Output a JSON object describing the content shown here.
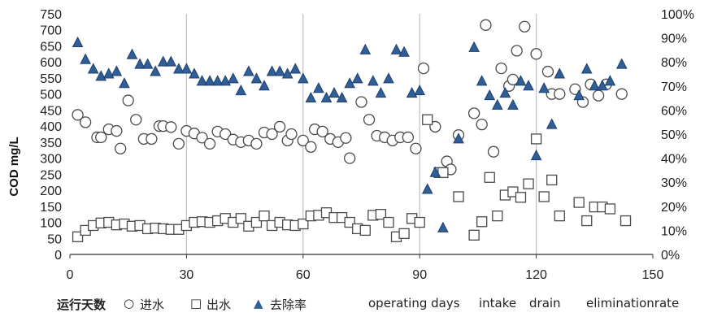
{
  "chart_data": {
    "type": "scatter",
    "title": "",
    "xlabel": "",
    "ylabel": "COD mg/L",
    "xlim": [
      0,
      150
    ],
    "xticks": [
      "0",
      "30",
      "60",
      "90",
      "120",
      "150"
    ],
    "ylim": [
      0,
      750
    ],
    "yticks": [
      "0",
      "50",
      "100",
      "150",
      "200",
      "250",
      "300",
      "350",
      "400",
      "450",
      "500",
      "550",
      "600",
      "650",
      "700",
      "750"
    ],
    "y2lim": [
      0,
      100
    ],
    "y2ticks": [
      "0%",
      "10%",
      "20%",
      "30%",
      "40%",
      "50%",
      "60%",
      "70%",
      "80%",
      "90%",
      "100%"
    ],
    "grid": "vertical gridlines at x = 30, 60, 90, 120",
    "series": [
      {
        "name": "进水",
        "axis": "left",
        "marker": "circle",
        "points": [
          [
            2,
            435
          ],
          [
            4,
            412
          ],
          [
            7,
            365
          ],
          [
            8,
            365
          ],
          [
            10,
            390
          ],
          [
            12,
            385
          ],
          [
            13,
            330
          ],
          [
            15,
            480
          ],
          [
            17,
            420
          ],
          [
            19,
            360
          ],
          [
            21,
            360
          ],
          [
            23,
            400
          ],
          [
            24,
            400
          ],
          [
            26,
            397
          ],
          [
            28,
            345
          ],
          [
            30,
            385
          ],
          [
            32,
            377
          ],
          [
            34,
            364
          ],
          [
            36,
            345
          ],
          [
            38,
            383
          ],
          [
            40,
            375
          ],
          [
            42,
            358
          ],
          [
            44,
            350
          ],
          [
            46,
            355
          ],
          [
            48,
            345
          ],
          [
            50,
            380
          ],
          [
            52,
            375
          ],
          [
            54,
            398
          ],
          [
            56,
            355
          ],
          [
            57,
            375
          ],
          [
            60,
            355
          ],
          [
            62,
            335
          ],
          [
            63,
            390
          ],
          [
            65,
            383
          ],
          [
            67,
            360
          ],
          [
            69,
            350
          ],
          [
            71,
            363
          ],
          [
            72,
            300
          ],
          [
            75,
            475
          ],
          [
            77,
            420
          ],
          [
            79,
            370
          ],
          [
            81,
            365
          ],
          [
            83,
            355
          ],
          [
            85,
            365
          ],
          [
            87,
            365
          ],
          [
            89,
            330
          ],
          [
            91,
            580
          ],
          [
            94,
            398
          ],
          [
            97,
            290
          ],
          [
            98,
            265
          ],
          [
            100,
            372
          ],
          [
            104,
            440
          ],
          [
            106,
            405
          ],
          [
            107,
            715
          ],
          [
            109,
            320
          ],
          [
            111,
            580
          ],
          [
            113,
            525
          ],
          [
            114,
            545
          ],
          [
            115,
            635
          ],
          [
            117,
            710
          ],
          [
            120,
            625
          ],
          [
            123,
            570
          ],
          [
            124,
            500
          ],
          [
            126,
            500
          ],
          [
            130,
            515
          ],
          [
            132,
            475
          ],
          [
            134,
            530
          ],
          [
            136,
            495
          ],
          [
            138,
            530
          ],
          [
            142,
            500
          ]
        ]
      },
      {
        "name": "出水",
        "axis": "left",
        "marker": "square",
        "points": [
          [
            2,
            55
          ],
          [
            4,
            75
          ],
          [
            6,
            90
          ],
          [
            8,
            98
          ],
          [
            10,
            100
          ],
          [
            12,
            92
          ],
          [
            14,
            95
          ],
          [
            16,
            88
          ],
          [
            18,
            90
          ],
          [
            20,
            80
          ],
          [
            22,
            82
          ],
          [
            24,
            80
          ],
          [
            26,
            78
          ],
          [
            28,
            78
          ],
          [
            30,
            90
          ],
          [
            32,
            100
          ],
          [
            34,
            102
          ],
          [
            36,
            100
          ],
          [
            38,
            105
          ],
          [
            40,
            112
          ],
          [
            42,
            100
          ],
          [
            44,
            112
          ],
          [
            46,
            88
          ],
          [
            48,
            100
          ],
          [
            50,
            120
          ],
          [
            52,
            90
          ],
          [
            54,
            100
          ],
          [
            56,
            92
          ],
          [
            58,
            90
          ],
          [
            60,
            95
          ],
          [
            62,
            120
          ],
          [
            64,
            122
          ],
          [
            66,
            130
          ],
          [
            68,
            115
          ],
          [
            70,
            115
          ],
          [
            72,
            100
          ],
          [
            74,
            80
          ],
          [
            76,
            75
          ],
          [
            78,
            122
          ],
          [
            80,
            125
          ],
          [
            82,
            100
          ],
          [
            84,
            55
          ],
          [
            86,
            65
          ],
          [
            88,
            112
          ],
          [
            90,
            100
          ],
          [
            92,
            420
          ],
          [
            95,
            255
          ],
          [
            96,
            255
          ],
          [
            100,
            180
          ],
          [
            104,
            60
          ],
          [
            106,
            102
          ],
          [
            108,
            240
          ],
          [
            110,
            120
          ],
          [
            112,
            185
          ],
          [
            114,
            195
          ],
          [
            116,
            178
          ],
          [
            118,
            220
          ],
          [
            120,
            360
          ],
          [
            122,
            180
          ],
          [
            124,
            232
          ],
          [
            126,
            120
          ],
          [
            131,
            162
          ],
          [
            133,
            105
          ],
          [
            135,
            148
          ],
          [
            137,
            148
          ],
          [
            139,
            142
          ],
          [
            143,
            105
          ]
        ]
      },
      {
        "name": "去除率",
        "axis": "right",
        "marker": "triangle",
        "points": [
          [
            2,
            88
          ],
          [
            4,
            81
          ],
          [
            6,
            77
          ],
          [
            8,
            74
          ],
          [
            10,
            75
          ],
          [
            12,
            76
          ],
          [
            14,
            71
          ],
          [
            16,
            83
          ],
          [
            18,
            79
          ],
          [
            20,
            79
          ],
          [
            22,
            76
          ],
          [
            24,
            80
          ],
          [
            26,
            80
          ],
          [
            28,
            77
          ],
          [
            30,
            77
          ],
          [
            32,
            75
          ],
          [
            34,
            72
          ],
          [
            36,
            72
          ],
          [
            38,
            72
          ],
          [
            40,
            72
          ],
          [
            42,
            73
          ],
          [
            44,
            68
          ],
          [
            46,
            76
          ],
          [
            48,
            73
          ],
          [
            50,
            70
          ],
          [
            52,
            76
          ],
          [
            54,
            76
          ],
          [
            56,
            75
          ],
          [
            58,
            77
          ],
          [
            60,
            73
          ],
          [
            62,
            65
          ],
          [
            64,
            69
          ],
          [
            66,
            65
          ],
          [
            68,
            67
          ],
          [
            70,
            65
          ],
          [
            72,
            71
          ],
          [
            74,
            73
          ],
          [
            76,
            85
          ],
          [
            78,
            72
          ],
          [
            80,
            67
          ],
          [
            82,
            73
          ],
          [
            84,
            85
          ],
          [
            86,
            84
          ],
          [
            88,
            67
          ],
          [
            90,
            68
          ],
          [
            92,
            27
          ],
          [
            94,
            34
          ],
          [
            96,
            11
          ],
          [
            100,
            48
          ],
          [
            104,
            86
          ],
          [
            106,
            72
          ],
          [
            108,
            66
          ],
          [
            110,
            62
          ],
          [
            112,
            67
          ],
          [
            114,
            62
          ],
          [
            116,
            72
          ],
          [
            118,
            70
          ],
          [
            120,
            41
          ],
          [
            122,
            69
          ],
          [
            124,
            54
          ],
          [
            126,
            75
          ],
          [
            131,
            66
          ],
          [
            133,
            77
          ],
          [
            135,
            70
          ],
          [
            137,
            70
          ],
          [
            139,
            72
          ],
          [
            142,
            79
          ]
        ]
      }
    ],
    "legend": {
      "position": "bottom",
      "title": "运行天数",
      "entries": [
        {
          "label": "进水",
          "marker": "circle"
        },
        {
          "label": "出水",
          "marker": "square"
        },
        {
          "label": "去除率",
          "marker": "triangle"
        }
      ],
      "english": [
        "operating days",
        "intake",
        "drain",
        "eliminationrate"
      ]
    },
    "colors": {
      "circle_fill": "#ffffff",
      "marker_stroke": "#4a4a4a",
      "triangle_fill": "#2f5f96",
      "triangle_stroke": "#1d3f6e",
      "grid": "#c0c0c0",
      "axis": "#333333"
    }
  }
}
